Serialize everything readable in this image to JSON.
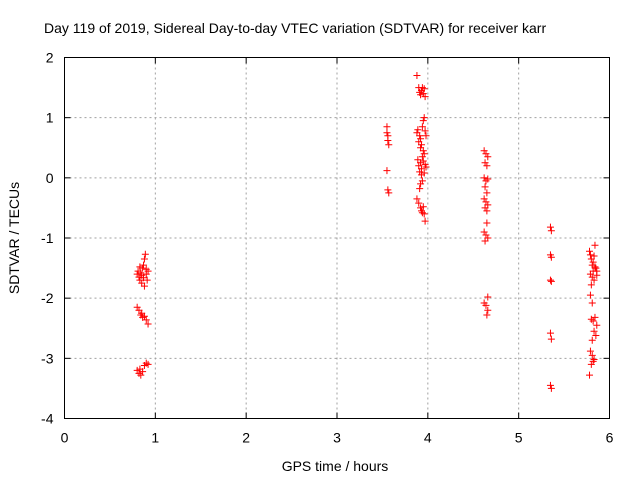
{
  "chart_data": {
    "type": "scatter",
    "title": "Day 119 of 2019, Sidereal Day-to-day VTEC variation (SDTVAR) for receiver karr",
    "xlabel": "GPS time / hours",
    "ylabel": "SDTVAR / TECUs",
    "xlim": [
      0,
      6
    ],
    "ylim": [
      -4,
      2
    ],
    "xticks": [
      "0",
      "1",
      "2",
      "3",
      "4",
      "5",
      "6"
    ],
    "yticks": [
      "2",
      "1",
      "0",
      "-1",
      "-2",
      "-3",
      "-4"
    ],
    "grid": true,
    "marker": "plus",
    "color": "#ff0000",
    "series": [
      {
        "name": "SDTVAR",
        "points": [
          [
            0.8,
            -1.6
          ],
          [
            0.81,
            -1.55
          ],
          [
            0.82,
            -1.65
          ],
          [
            0.83,
            -1.7
          ],
          [
            0.84,
            -1.58
          ],
          [
            0.85,
            -1.62
          ],
          [
            0.86,
            -1.5
          ],
          [
            0.87,
            -1.45
          ],
          [
            0.88,
            -1.35
          ],
          [
            0.89,
            -1.27
          ],
          [
            0.9,
            -1.6
          ],
          [
            0.91,
            -1.7
          ],
          [
            0.92,
            -1.55
          ],
          [
            0.85,
            -1.75
          ],
          [
            0.88,
            -1.8
          ],
          [
            0.9,
            -1.52
          ],
          [
            0.87,
            -1.66
          ],
          [
            0.83,
            -1.48
          ],
          [
            0.8,
            -2.15
          ],
          [
            0.82,
            -2.2
          ],
          [
            0.84,
            -2.28
          ],
          [
            0.86,
            -2.32
          ],
          [
            0.88,
            -2.3
          ],
          [
            0.9,
            -2.36
          ],
          [
            0.92,
            -2.43
          ],
          [
            0.85,
            -2.25
          ],
          [
            0.8,
            -3.2
          ],
          [
            0.82,
            -3.25
          ],
          [
            0.84,
            -3.28
          ],
          [
            0.86,
            -3.22
          ],
          [
            0.88,
            -3.12
          ],
          [
            0.9,
            -3.08
          ],
          [
            0.92,
            -3.1
          ],
          [
            0.83,
            -3.18
          ],
          [
            3.55,
            0.85
          ],
          [
            3.55,
            0.75
          ],
          [
            3.56,
            0.7
          ],
          [
            3.56,
            0.62
          ],
          [
            3.57,
            0.55
          ],
          [
            3.55,
            0.12
          ],
          [
            3.56,
            -0.2
          ],
          [
            3.57,
            -0.25
          ],
          [
            3.88,
            1.7
          ],
          [
            3.9,
            1.5
          ],
          [
            3.91,
            1.42
          ],
          [
            3.92,
            1.38
          ],
          [
            3.93,
            1.45
          ],
          [
            3.94,
            1.5
          ],
          [
            3.95,
            1.4
          ],
          [
            3.96,
            1.48
          ],
          [
            3.97,
            1.35
          ],
          [
            3.88,
            0.75
          ],
          [
            3.89,
            0.8
          ],
          [
            3.9,
            0.6
          ],
          [
            3.91,
            0.7
          ],
          [
            3.92,
            0.65
          ],
          [
            3.93,
            0.55
          ],
          [
            3.94,
            0.85
          ],
          [
            3.95,
            0.95
          ],
          [
            3.96,
            1.0
          ],
          [
            3.97,
            0.78
          ],
          [
            3.98,
            0.7
          ],
          [
            3.92,
            0.5
          ],
          [
            3.95,
            0.45
          ],
          [
            3.89,
            0.3
          ],
          [
            3.9,
            0.2
          ],
          [
            3.91,
            0.1
          ],
          [
            3.92,
            0.25
          ],
          [
            3.93,
            0.15
          ],
          [
            3.94,
            0.35
          ],
          [
            3.95,
            0.28
          ],
          [
            3.96,
            0.4
          ],
          [
            3.97,
            0.22
          ],
          [
            3.98,
            0.18
          ],
          [
            3.93,
            0.05
          ],
          [
            3.96,
            0.08
          ],
          [
            3.94,
            -0.05
          ],
          [
            3.92,
            -0.1
          ],
          [
            3.91,
            -0.18
          ],
          [
            3.88,
            -0.35
          ],
          [
            3.9,
            -0.42
          ],
          [
            3.92,
            -0.5
          ],
          [
            3.93,
            -0.55
          ],
          [
            3.95,
            -0.48
          ],
          [
            3.96,
            -0.6
          ],
          [
            3.97,
            -0.72
          ],
          [
            3.94,
            -0.58
          ],
          [
            4.62,
            0.45
          ],
          [
            4.64,
            0.4
          ],
          [
            4.66,
            0.35
          ],
          [
            4.63,
            0.25
          ],
          [
            4.65,
            0.2
          ],
          [
            4.62,
            0.0
          ],
          [
            4.64,
            -0.05
          ],
          [
            4.66,
            -0.02
          ],
          [
            4.63,
            -0.15
          ],
          [
            4.65,
            -0.25
          ],
          [
            4.62,
            -0.35
          ],
          [
            4.64,
            -0.4
          ],
          [
            4.66,
            -0.45
          ],
          [
            4.63,
            -0.5
          ],
          [
            4.65,
            -0.55
          ],
          [
            4.62,
            -0.9
          ],
          [
            4.64,
            -0.95
          ],
          [
            4.66,
            -1.0
          ],
          [
            4.63,
            -1.05
          ],
          [
            4.65,
            -0.75
          ],
          [
            4.62,
            -2.08
          ],
          [
            4.64,
            -2.12
          ],
          [
            4.66,
            -2.2
          ],
          [
            4.65,
            -2.28
          ],
          [
            4.66,
            -1.98
          ],
          [
            5.35,
            -0.82
          ],
          [
            5.36,
            -0.88
          ],
          [
            5.35,
            -1.28
          ],
          [
            5.36,
            -1.32
          ],
          [
            5.35,
            -1.7
          ],
          [
            5.36,
            -1.72
          ],
          [
            5.35,
            -2.58
          ],
          [
            5.36,
            -2.68
          ],
          [
            5.35,
            -3.45
          ],
          [
            5.36,
            -3.5
          ],
          [
            5.78,
            -1.22
          ],
          [
            5.79,
            -1.28
          ],
          [
            5.8,
            -1.35
          ],
          [
            5.81,
            -1.45
          ],
          [
            5.82,
            -1.4
          ],
          [
            5.83,
            -1.3
          ],
          [
            5.84,
            -1.12
          ],
          [
            5.85,
            -1.5
          ],
          [
            5.86,
            -1.55
          ],
          [
            5.79,
            -1.6
          ],
          [
            5.81,
            -1.65
          ],
          [
            5.83,
            -1.7
          ],
          [
            5.8,
            -1.78
          ],
          [
            5.82,
            -1.55
          ],
          [
            5.84,
            -1.48
          ],
          [
            5.86,
            -1.62
          ],
          [
            5.79,
            -1.95
          ],
          [
            5.81,
            -2.08
          ],
          [
            5.8,
            -2.35
          ],
          [
            5.82,
            -2.38
          ],
          [
            5.84,
            -2.32
          ],
          [
            5.86,
            -2.45
          ],
          [
            5.83,
            -2.55
          ],
          [
            5.85,
            -2.62
          ],
          [
            5.81,
            -2.7
          ],
          [
            5.79,
            -2.88
          ],
          [
            5.81,
            -2.95
          ],
          [
            5.83,
            -3.02
          ],
          [
            5.8,
            -3.1
          ],
          [
            5.82,
            -3.05
          ],
          [
            5.78,
            -3.28
          ]
        ]
      }
    ]
  }
}
